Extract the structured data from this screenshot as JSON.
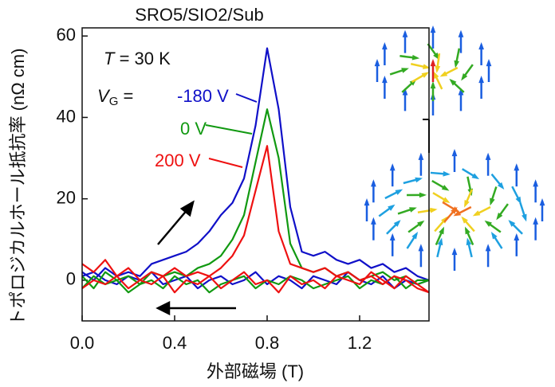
{
  "chart_data": {
    "type": "line",
    "title": "SRO5/SIO2/Sub",
    "x_label": "外部磁場 (T)",
    "y_label": "トポロジカルホール抵抗率 (nΩ cm)",
    "temperature_label": {
      "symbol": "T",
      "text": " = 30 K"
    },
    "gate_label": {
      "symbol": "V",
      "subscript": "G",
      "text": " = "
    },
    "x": [
      0,
      0.05,
      0.1,
      0.15,
      0.2,
      0.25,
      0.3,
      0.35,
      0.4,
      0.45,
      0.5,
      0.55,
      0.6,
      0.65,
      0.7,
      0.75,
      0.8,
      0.85,
      0.9,
      0.95,
      1.0,
      1.05,
      1.1,
      1.15,
      1.2,
      1.25,
      1.3,
      1.35,
      1.4,
      1.45,
      1.5,
      1.45,
      1.4,
      1.35,
      1.3,
      1.25,
      1.2,
      1.15,
      1.1,
      1.05,
      1.0,
      0.95,
      0.9,
      0.85,
      0.8,
      0.75,
      0.7,
      0.65,
      0.6,
      0.55,
      0.5,
      0.45,
      0.4,
      0.35,
      0.3,
      0.25,
      0.2,
      0.15,
      0.1,
      0.05,
      0
    ],
    "series": [
      {
        "name": "-180 V",
        "color": "#1010c8",
        "values": [
          2,
          0,
          3,
          1,
          2,
          1,
          4,
          5,
          6,
          7,
          9,
          12,
          16,
          19,
          25,
          38,
          57,
          42,
          18,
          7,
          6,
          7,
          5,
          4,
          5,
          3,
          4,
          2,
          3,
          1,
          0,
          -1,
          0,
          -2,
          1,
          -1,
          0,
          2,
          -1,
          0,
          1,
          -2,
          0,
          1,
          -1,
          2,
          0,
          -1,
          1,
          0,
          -2,
          1,
          0,
          -1,
          2,
          0,
          1,
          -1,
          0,
          2,
          1
        ]
      },
      {
        "name": "0 V",
        "color": "#119911",
        "values": [
          1,
          -2,
          2,
          0,
          1,
          -1,
          2,
          1,
          2,
          1,
          3,
          4,
          6,
          10,
          16,
          29,
          42,
          30,
          9,
          3,
          2,
          3,
          1,
          2,
          0,
          1,
          2,
          0,
          1,
          -1,
          0,
          0,
          -2,
          1,
          -1,
          0,
          -2,
          1,
          0,
          -1,
          -2,
          0,
          1,
          -1,
          0,
          -2,
          1,
          0,
          -1,
          -3,
          0,
          -1,
          1,
          -2,
          0,
          -1,
          -3,
          0,
          -1,
          1,
          -2
        ]
      },
      {
        "name": "200 V",
        "color": "#ee1111",
        "values": [
          4,
          2,
          5,
          1,
          3,
          0,
          2,
          1,
          3,
          1,
          2,
          1,
          3,
          6,
          11,
          22,
          33,
          12,
          4,
          3,
          2,
          3,
          1,
          2,
          0,
          1,
          -1,
          1,
          0,
          -2,
          -3,
          -1,
          1,
          -2,
          0,
          2,
          -1,
          0,
          1,
          -2,
          0,
          -1,
          1,
          -3,
          0,
          -1,
          2,
          0,
          -2,
          1,
          -1,
          0,
          -3,
          1,
          -1,
          0,
          -2,
          1,
          -1,
          0,
          -2
        ]
      }
    ],
    "xlim": [
      0,
      1.5
    ],
    "ylim": [
      -10,
      62
    ],
    "xticks": [
      {
        "value": 0,
        "label": "0.0"
      },
      0.4,
      0.8,
      1.2
    ],
    "yticks": [
      0,
      20,
      40,
      60
    ]
  }
}
